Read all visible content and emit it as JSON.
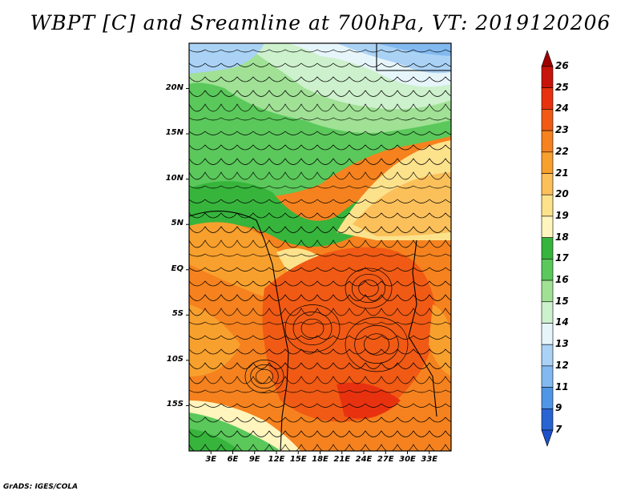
{
  "title": "WBPT [C] and Sreamline at 700hPa, VT: 2019120206",
  "credit": "GrADS: IGES/COLA",
  "map": {
    "lon_range": [
      0,
      36
    ],
    "lat_range": [
      -20,
      25
    ],
    "lat_labels": [
      {
        "value": 20,
        "text": "20N"
      },
      {
        "value": 15,
        "text": "15N"
      },
      {
        "value": 10,
        "text": "10N"
      },
      {
        "value": 5,
        "text": "5N"
      },
      {
        "value": 0,
        "text": "EQ"
      },
      {
        "value": -5,
        "text": "5S"
      },
      {
        "value": -10,
        "text": "10S"
      },
      {
        "value": -15,
        "text": "15S"
      }
    ],
    "lon_labels": [
      {
        "value": 3,
        "text": "3E"
      },
      {
        "value": 6,
        "text": "6E"
      },
      {
        "value": 9,
        "text": "9E"
      },
      {
        "value": 12,
        "text": "12E"
      },
      {
        "value": 15,
        "text": "15E"
      },
      {
        "value": 18,
        "text": "18E"
      },
      {
        "value": 21,
        "text": "21E"
      },
      {
        "value": 24,
        "text": "24E"
      },
      {
        "value": 27,
        "text": "27E"
      },
      {
        "value": 30,
        "text": "30E"
      },
      {
        "value": 33,
        "text": "33E"
      }
    ]
  },
  "colorbar": {
    "levels": [
      "26",
      "25",
      "24",
      "23",
      "22",
      "21",
      "20",
      "19",
      "18",
      "17",
      "16",
      "15",
      "14",
      "13",
      "12",
      "11",
      "9",
      "7"
    ],
    "colors": [
      "#a00000",
      "#c8140a",
      "#e8320f",
      "#f05a14",
      "#f5821e",
      "#f8a02d",
      "#fbc05a",
      "#fde28c",
      "#fff5bd",
      "#37b43c",
      "#5ac85a",
      "#a0e195",
      "#cdf0cd",
      "#e6f5fa",
      "#aad2f5",
      "#82b9f0",
      "#5096e6",
      "#2864d2",
      "#1e50c8"
    ]
  }
}
